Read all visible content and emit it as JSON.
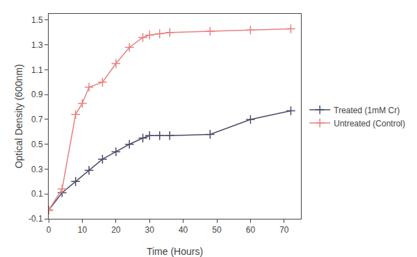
{
  "chart_data": {
    "type": "line",
    "xlabel": "Time (Hours)",
    "ylabel": "Optical Density (600nm)",
    "series": [
      {
        "name": "Treated (1mM Cr)",
        "color": "#4a4a6a",
        "marker": "plus",
        "line_style": "solid",
        "x": [
          0,
          4,
          8,
          12,
          16,
          20,
          24,
          28,
          30,
          33,
          36,
          48,
          60,
          72
        ],
        "values": [
          -0.03,
          0.11,
          0.2,
          0.29,
          0.38,
          0.44,
          0.5,
          0.55,
          0.57,
          0.57,
          0.57,
          0.58,
          0.7,
          0.77
        ]
      },
      {
        "name": "Untreated (Control)",
        "color": "#e88080",
        "marker": "plus",
        "line_style": "solid",
        "x": [
          0,
          4,
          8,
          10,
          12,
          16,
          20,
          24,
          28,
          30,
          33,
          36,
          48,
          60,
          72
        ],
        "values": [
          -0.03,
          0.14,
          0.74,
          0.83,
          0.96,
          1.0,
          1.15,
          1.28,
          1.36,
          1.38,
          1.39,
          1.4,
          1.41,
          1.42,
          1.43
        ]
      }
    ],
    "xlim": [
      0,
      75
    ],
    "ylim": [
      -0.1,
      1.55
    ],
    "xticks": [
      0,
      10,
      20,
      30,
      40,
      50,
      60,
      70
    ],
    "yticks": [
      -0.1,
      0.1,
      0.3,
      0.5,
      0.7,
      0.9,
      1.1,
      1.3,
      1.5
    ],
    "grid": false,
    "legend": "right"
  }
}
